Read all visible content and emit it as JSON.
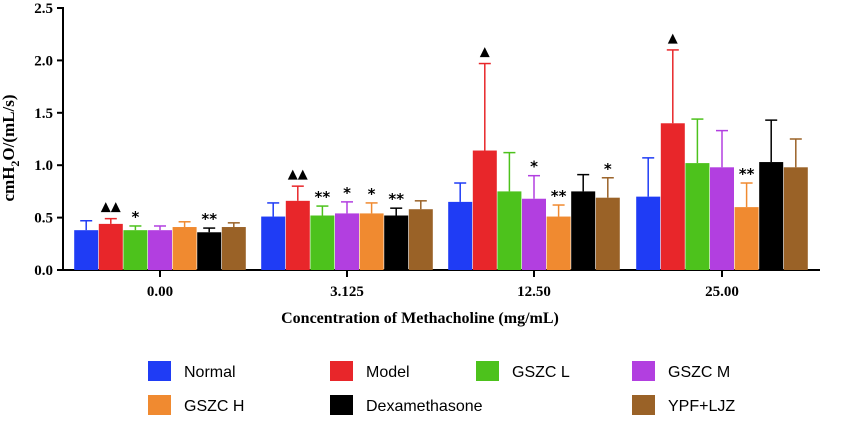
{
  "chart_data": {
    "type": "bar",
    "xlabel": "Concentration of Methacholine (mg/mL)",
    "ylabel_parts": {
      "base": "cmH",
      "sub": "2",
      "rest": "O/(mL/s)"
    },
    "ylim": [
      0,
      2.5
    ],
    "yticks": [
      "0.0",
      "0.5",
      "1.0",
      "1.5",
      "2.0",
      "2.5"
    ],
    "categories": [
      "0.00",
      "3.125",
      "12.50",
      "25.00"
    ],
    "series": [
      {
        "name": "Normal",
        "color": "#1f3cf5",
        "values": [
          0.38,
          0.51,
          0.65,
          0.7
        ],
        "errors": [
          0.09,
          0.13,
          0.18,
          0.37
        ],
        "marks": [
          "",
          "",
          "",
          ""
        ]
      },
      {
        "name": "Model",
        "color": "#e8262a",
        "values": [
          0.44,
          0.66,
          1.14,
          1.4
        ],
        "errors": [
          0.05,
          0.14,
          0.83,
          0.7
        ],
        "marks": [
          "▲▲",
          "▲▲",
          "▲",
          "▲"
        ]
      },
      {
        "name": "GSZC L",
        "color": "#4dc21c",
        "values": [
          0.38,
          0.52,
          0.75,
          1.02
        ],
        "errors": [
          0.04,
          0.09,
          0.37,
          0.42
        ],
        "marks": [
          "*",
          "**",
          "",
          ""
        ]
      },
      {
        "name": "GSZC M",
        "color": "#b23fe0",
        "values": [
          0.38,
          0.54,
          0.68,
          0.98
        ],
        "errors": [
          0.04,
          0.11,
          0.22,
          0.35
        ],
        "marks": [
          "",
          "*",
          "*",
          ""
        ]
      },
      {
        "name": "GSZC H",
        "color": "#f08a30",
        "values": [
          0.41,
          0.54,
          0.51,
          0.6
        ],
        "errors": [
          0.05,
          0.1,
          0.11,
          0.23
        ],
        "marks": [
          "",
          "*",
          "**",
          "**"
        ]
      },
      {
        "name": "Dexamethasone",
        "color": "#000000",
        "values": [
          0.36,
          0.52,
          0.75,
          1.03
        ],
        "errors": [
          0.04,
          0.07,
          0.16,
          0.4
        ],
        "marks": [
          "**",
          "**",
          "",
          ""
        ]
      },
      {
        "name": "YPF+LJZ",
        "color": "#9a6227",
        "values": [
          0.41,
          0.58,
          0.69,
          0.98
        ],
        "errors": [
          0.04,
          0.08,
          0.19,
          0.27
        ],
        "marks": [
          "",
          "",
          "*",
          ""
        ]
      }
    ]
  }
}
